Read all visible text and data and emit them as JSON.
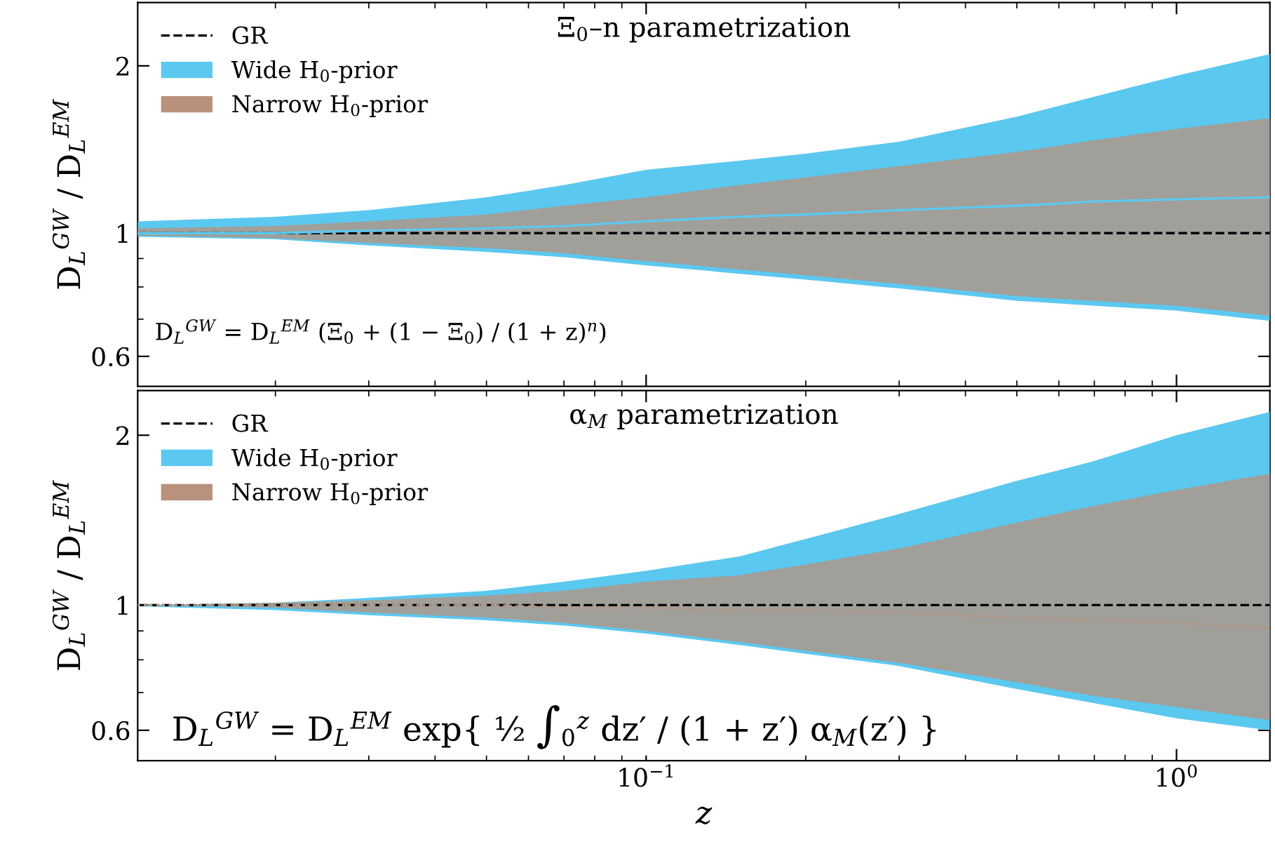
{
  "chart_data": [
    {
      "type": "area",
      "title": "Ξ$_{0}$–n parametrization",
      "ylabel": "D$_{L}$$^{GW}$ / D$_{L}$$^{EM}$",
      "log": "xy",
      "legend": "top left",
      "tick_labels": "y",
      "grid": false,
      "x": [
        0.011,
        0.02,
        0.03,
        0.05,
        0.07,
        0.1,
        0.15,
        0.2,
        0.3,
        0.5,
        0.7,
        1.0,
        1.5
      ],
      "xlim": [
        0.011,
        1.5
      ],
      "ylim": [
        0.53,
        2.6
      ],
      "yticks": [
        0.6,
        1,
        2
      ],
      "annotations": [
        "D$_{L}$$^{GW}$ = D$_{L}$$^{EM}$ (Ξ$_{0}$ + (1 − Ξ$_{0}$) / (1 + z)$^{n}$)"
      ],
      "series": [
        {
          "name": "GR",
          "type": "line",
          "line_style": "dashed",
          "color": "#000000",
          "values": [
            1,
            1,
            1,
            1,
            1,
            1,
            1,
            1,
            1,
            1,
            1,
            1,
            1
          ]
        },
        {
          "name": "Wide H$_{0}$-prior",
          "type": "line",
          "color": "#5bc8f0",
          "values": [
            1.0,
            1.0,
            1.01,
            1.02,
            1.03,
            1.05,
            1.07,
            1.08,
            1.1,
            1.12,
            1.14,
            1.15,
            1.16
          ],
          "lower": [
            0.985,
            0.975,
            0.95,
            0.925,
            0.905,
            0.875,
            0.845,
            0.825,
            0.795,
            0.755,
            0.74,
            0.725,
            0.695
          ],
          "upper": [
            1.05,
            1.07,
            1.1,
            1.16,
            1.22,
            1.3,
            1.35,
            1.39,
            1.46,
            1.62,
            1.76,
            1.92,
            2.1
          ]
        },
        {
          "name": "Narrow H$_{0}$-prior",
          "type": "line",
          "color": "#b8927c",
          "values": [
            null,
            null,
            null,
            null,
            null,
            null,
            null,
            null,
            null,
            null,
            null,
            null,
            null
          ],
          "lower": [
            0.99,
            0.98,
            0.96,
            0.94,
            0.92,
            0.89,
            0.86,
            0.84,
            0.81,
            0.77,
            0.755,
            0.74,
            0.71
          ],
          "upper": [
            1.02,
            1.03,
            1.05,
            1.08,
            1.12,
            1.16,
            1.22,
            1.26,
            1.32,
            1.4,
            1.47,
            1.54,
            1.61
          ]
        }
      ]
    },
    {
      "type": "area",
      "title": "α$_{M}$ parametrization",
      "ylabel": "D$_{L}$$^{GW}$ / D$_{L}$$^{EM}$",
      "xlabel": "z",
      "log": "xy",
      "legend": "top left",
      "grid": false,
      "x": [
        0.011,
        0.02,
        0.03,
        0.05,
        0.07,
        0.1,
        0.15,
        0.2,
        0.3,
        0.5,
        0.7,
        1.0,
        1.5
      ],
      "xlim": [
        0.011,
        1.5
      ],
      "xticks": [
        {
          "value": 0.1,
          "label": "10$^{−1}$"
        },
        {
          "value": 1,
          "label": "10$^{0}$"
        }
      ],
      "ylim": [
        0.53,
        2.4
      ],
      "yticks": [
        0.6,
        1,
        2
      ],
      "annotations": [
        "D$_{L}$$^{GW}$ = D$_{L}$$^{EM}$ exp{ ½ ∫$_{0}$$^{z}$ dz′ / (1 + z′) α$_{M}$(z′) }"
      ],
      "series": [
        {
          "name": "GR",
          "type": "line",
          "line_style": "dashed",
          "color": "#000000",
          "values": [
            1,
            1,
            1,
            1,
            1,
            1,
            1,
            1,
            1,
            1,
            1,
            1,
            1
          ]
        },
        {
          "name": "Wide H$_{0}$-prior",
          "type": "line",
          "color": "#5bc8f0",
          "values": [
            null,
            null,
            null,
            null,
            null,
            null,
            null,
            null,
            null,
            null,
            null,
            null,
            null
          ],
          "lower": [
            0.995,
            0.98,
            0.96,
            0.94,
            0.92,
            0.89,
            0.85,
            0.82,
            0.78,
            0.71,
            0.67,
            0.63,
            0.6
          ],
          "upper": [
            1.0,
            1.01,
            1.03,
            1.06,
            1.1,
            1.15,
            1.22,
            1.31,
            1.45,
            1.66,
            1.8,
            2.0,
            2.2
          ]
        },
        {
          "name": "Narrow H$_{0}$-prior",
          "type": "line",
          "line_style": "dotted",
          "color": "#b8927c",
          "values": [
            1,
            1,
            1,
            1,
            0.99,
            0.99,
            0.98,
            0.98,
            0.97,
            0.95,
            0.94,
            0.93,
            0.91
          ],
          "lower": [
            1.0,
            0.99,
            0.97,
            0.95,
            0.93,
            0.9,
            0.86,
            0.83,
            0.79,
            0.73,
            0.69,
            0.66,
            0.625
          ],
          "upper": [
            1.0,
            1.01,
            1.02,
            1.04,
            1.06,
            1.1,
            1.13,
            1.18,
            1.26,
            1.4,
            1.5,
            1.6,
            1.71
          ]
        }
      ]
    }
  ]
}
